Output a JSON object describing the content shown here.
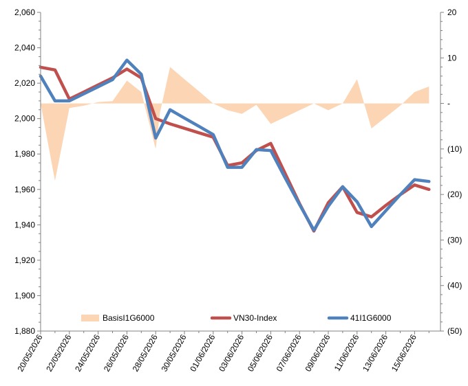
{
  "chart_data": {
    "type": "line",
    "x": [
      "20/05/2026",
      "21/05/2026",
      "22/05/2026",
      "23/05/2026",
      "24/05/2026",
      "25/05/2026",
      "26/05/2026",
      "27/05/2026",
      "28/05/2026",
      "29/05/2026",
      "30/05/2026",
      "31/05/2026",
      "01/06/2026",
      "02/06/2026",
      "03/06/2026",
      "04/06/2026",
      "05/06/2026",
      "06/06/2026",
      "07/06/2026",
      "08/06/2026",
      "09/06/2026",
      "10/06/2026",
      "11/06/2026",
      "12/06/2026",
      "13/06/2026",
      "14/06/2026",
      "15/06/2026",
      "16/06/2026"
    ],
    "x_ticks": [
      "20/05/2026",
      "22/05/2026",
      "24/05/2026",
      "26/05/2026",
      "28/05/2026",
      "30/05/2026",
      "01/06/2026",
      "03/06/2026",
      "05/06/2026",
      "07/06/2026",
      "09/06/2026",
      "11/06/2026",
      "13/06/2026",
      "15/06/2026"
    ],
    "y_left": {
      "range": [
        1880,
        2060
      ],
      "ticks": [
        1880,
        1900,
        1920,
        1940,
        1960,
        1980,
        2000,
        2020,
        2040,
        2060
      ],
      "tick_labels": [
        "1,880",
        "1,900",
        "1,920",
        "1,940",
        "1,960",
        "1,980",
        "2,000",
        "2,020",
        "2,040",
        "2,060"
      ]
    },
    "y_right": {
      "range": [
        -50,
        20
      ],
      "ticks": [
        20,
        10,
        0,
        -10,
        -20,
        -30,
        -40,
        -50
      ],
      "tick_labels": [
        "20",
        "10",
        "-",
        "(10)",
        "(20)",
        "(30)",
        "(40)",
        "(50)"
      ]
    },
    "series": [
      {
        "name": "BasisI1G6000",
        "kind": "area",
        "axis": "right",
        "color": "#fcd5b4",
        "points": [
          [
            0,
            0
          ],
          [
            1,
            -17
          ],
          [
            2,
            -1
          ],
          [
            3,
            -0.5
          ],
          [
            4,
            0.3
          ],
          [
            5,
            0.5
          ],
          [
            6,
            5
          ],
          [
            7,
            2.5
          ],
          [
            8,
            -10
          ],
          [
            8.3,
            -2
          ],
          [
            9,
            8
          ],
          [
            10,
            5.3
          ],
          [
            11,
            2.7
          ],
          [
            12,
            0
          ],
          [
            13,
            -1.5
          ],
          [
            14,
            -2.3
          ],
          [
            15,
            -0.3
          ],
          [
            16,
            -4.5
          ],
          [
            17,
            -3
          ],
          [
            18,
            -1.5
          ],
          [
            19,
            0
          ],
          [
            20,
            -1.5
          ],
          [
            21,
            0
          ],
          [
            22,
            5.3
          ],
          [
            23,
            -5.5
          ],
          [
            24,
            -3
          ],
          [
            25,
            -0.5
          ],
          [
            26,
            2.5
          ],
          [
            27,
            3.7
          ]
        ]
      },
      {
        "name": "VN30-Index",
        "kind": "line",
        "axis": "left",
        "color": "#c0504d",
        "points": [
          [
            0,
            2029
          ],
          [
            1,
            2027.5
          ],
          [
            2,
            2011
          ],
          [
            3,
            2015
          ],
          [
            4,
            2019
          ],
          [
            5,
            2023
          ],
          [
            6,
            2028
          ],
          [
            7,
            2023
          ],
          [
            8,
            2000
          ],
          [
            9,
            1997
          ],
          [
            10,
            1994.5
          ],
          [
            11,
            1992
          ],
          [
            12,
            1989.5
          ],
          [
            13,
            1973.5
          ],
          [
            14,
            1975
          ],
          [
            15,
            1982
          ],
          [
            16,
            1986
          ],
          [
            17,
            1969
          ],
          [
            18,
            1952
          ],
          [
            19,
            1936.5
          ],
          [
            20,
            1952.5
          ],
          [
            21,
            1961.5
          ],
          [
            22,
            1947
          ],
          [
            23,
            1944.5
          ],
          [
            24,
            1951
          ],
          [
            25,
            1957
          ],
          [
            26,
            1962.5
          ],
          [
            27,
            1960
          ]
        ]
      },
      {
        "name": "41I1G6000",
        "kind": "line",
        "axis": "left",
        "color": "#4f81bd",
        "points": [
          [
            0,
            2024
          ],
          [
            1,
            2010
          ],
          [
            2,
            2010
          ],
          [
            3,
            2014
          ],
          [
            4,
            2018
          ],
          [
            5,
            2022
          ],
          [
            6,
            2033
          ],
          [
            7,
            2025
          ],
          [
            8,
            1989
          ],
          [
            9,
            2005
          ],
          [
            10,
            2000.3
          ],
          [
            11,
            1995.7
          ],
          [
            12,
            1991
          ],
          [
            13,
            1972.5
          ],
          [
            14,
            1972.5
          ],
          [
            15,
            1982.5
          ],
          [
            16,
            1982
          ],
          [
            17,
            1966.5
          ],
          [
            18,
            1951.5
          ],
          [
            19,
            1937
          ],
          [
            20,
            1950.5
          ],
          [
            21,
            1961.5
          ],
          [
            22,
            1953
          ],
          [
            23,
            1939
          ],
          [
            24,
            1948
          ],
          [
            25,
            1957
          ],
          [
            26,
            1965.5
          ],
          [
            27,
            1964.5
          ]
        ]
      }
    ],
    "legend": {
      "placement": "bottom-inside"
    },
    "grid": false
  }
}
